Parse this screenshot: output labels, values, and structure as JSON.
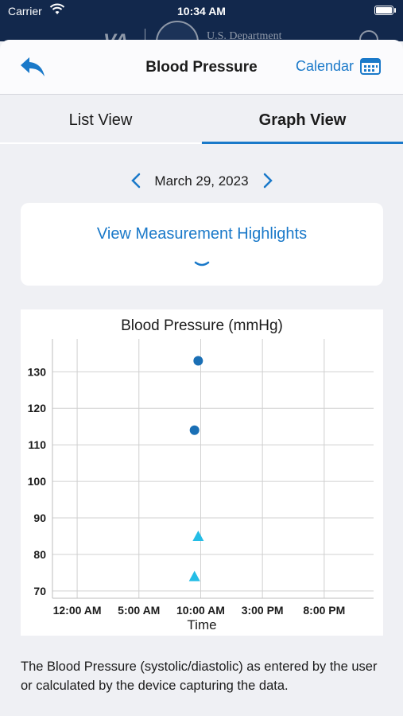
{
  "status_bar": {
    "carrier": "Carrier",
    "time": "10:34 AM"
  },
  "background_header": {
    "logo_text": "VA",
    "department_text": "U.S. Department"
  },
  "nav": {
    "title": "Blood Pressure",
    "calendar_label": "Calendar",
    "back_icon": "back-arrow-icon",
    "calendar_icon": "calendar-icon"
  },
  "tabs": [
    {
      "label": "List View",
      "selected": false
    },
    {
      "label": "Graph View",
      "selected": true
    }
  ],
  "date_nav": {
    "date": "March 29, 2023"
  },
  "highlights": {
    "label": "View Measurement Highlights"
  },
  "colors": {
    "accent": "#1a79c9",
    "systolic": "#1a6fb5",
    "diastolic": "#24bde6"
  },
  "chart_data": {
    "type": "scatter",
    "title": "Blood Pressure (mmHg)",
    "xlabel": "Time",
    "ylabel": "",
    "x_ticks": [
      "12:00 AM",
      "5:00 AM",
      "10:00 AM",
      "3:00 PM",
      "8:00 PM"
    ],
    "x_tick_hours": [
      0,
      5,
      10,
      15,
      20
    ],
    "xlim": [
      -2,
      24
    ],
    "y_ticks": [
      70,
      80,
      90,
      100,
      110,
      120,
      130
    ],
    "ylim": [
      68,
      139
    ],
    "grid": true,
    "series": [
      {
        "marker": "circle",
        "color": "#1a6fb5",
        "points": [
          {
            "x": 9.8,
            "y": 133
          },
          {
            "x": 9.5,
            "y": 114
          }
        ]
      },
      {
        "marker": "triangle",
        "color": "#24bde6",
        "points": [
          {
            "x": 9.8,
            "y": 85
          },
          {
            "x": 9.5,
            "y": 74
          }
        ]
      }
    ]
  },
  "description": "The Blood Pressure (systolic/diastolic) as entered by the user or calculated by the device capturing the data."
}
